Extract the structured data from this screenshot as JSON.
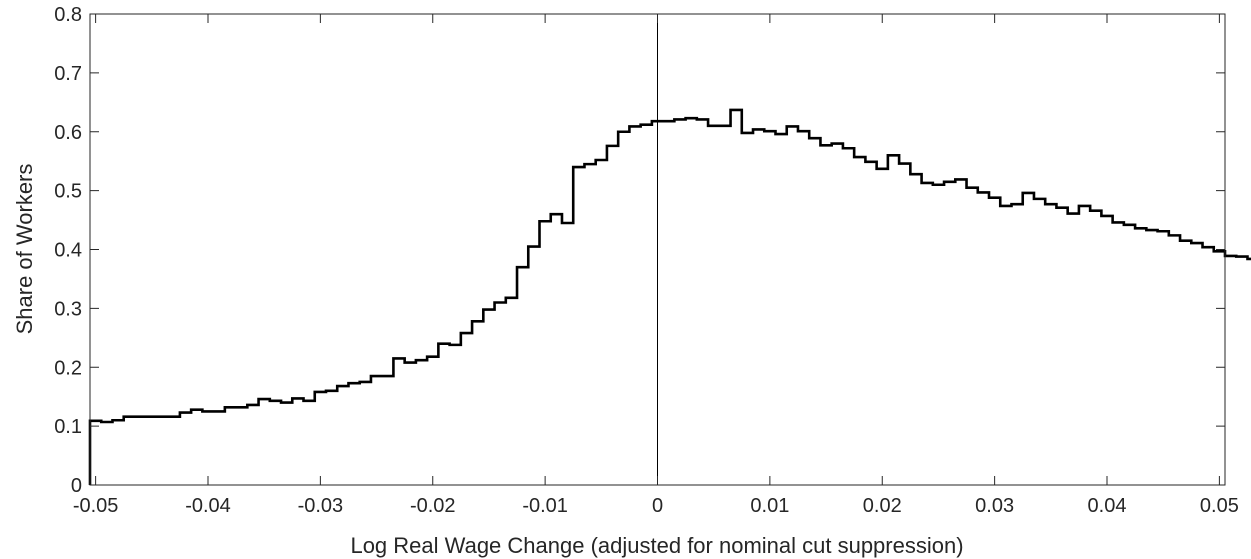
{
  "chart_data": {
    "type": "line",
    "title": "",
    "xlabel": "Log Real Wage Change (adjusted for nominal cut suppression)",
    "ylabel": "Share of Workers",
    "xlim": [
      -0.0505,
      0.0505
    ],
    "ylim": [
      0,
      0.8
    ],
    "xticks": [
      -0.05,
      -0.04,
      -0.03,
      -0.02,
      -0.01,
      0,
      0.01,
      0.02,
      0.03,
      0.04,
      0.05
    ],
    "xtick_labels": [
      "-0.05",
      "-0.04",
      "-0.03",
      "-0.02",
      "-0.01",
      "0",
      "0.01",
      "0.02",
      "0.03",
      "0.04",
      "0.05"
    ],
    "yticks": [
      0,
      0.1,
      0.2,
      0.3,
      0.4,
      0.5,
      0.6,
      0.7,
      0.8
    ],
    "ytick_labels": [
      "0",
      "0.1",
      "0.2",
      "0.3",
      "0.4",
      "0.5",
      "0.6",
      "0.7",
      "0.8"
    ],
    "grid": false,
    "vertical_reference_line": 0,
    "bin_width": 0.001,
    "series": [
      {
        "style": "stairs",
        "color": "#000000",
        "bin_start": -0.0505,
        "values": [
          0.109,
          0.107,
          0.11,
          0.116,
          0.116,
          0.116,
          0.116,
          0.116,
          0.123,
          0.128,
          0.125,
          0.125,
          0.132,
          0.132,
          0.136,
          0.146,
          0.143,
          0.14,
          0.147,
          0.143,
          0.158,
          0.16,
          0.168,
          0.173,
          0.175,
          0.185,
          0.185,
          0.215,
          0.208,
          0.212,
          0.218,
          0.24,
          0.238,
          0.258,
          0.278,
          0.298,
          0.31,
          0.318,
          0.37,
          0.405,
          0.448,
          0.46,
          0.445,
          0.54,
          0.545,
          0.552,
          0.576,
          0.6,
          0.609,
          0.612,
          0.618,
          0.618,
          0.621,
          0.623,
          0.621,
          0.61,
          0.61,
          0.637,
          0.598,
          0.604,
          0.601,
          0.596,
          0.609,
          0.601,
          0.589,
          0.577,
          0.58,
          0.572,
          0.557,
          0.549,
          0.537,
          0.56,
          0.546,
          0.528,
          0.513,
          0.51,
          0.515,
          0.519,
          0.505,
          0.497,
          0.488,
          0.474,
          0.477,
          0.496,
          0.486,
          0.477,
          0.471,
          0.461,
          0.474,
          0.466,
          0.457,
          0.446,
          0.442,
          0.436,
          0.433,
          0.431,
          0.424,
          0.415,
          0.411,
          0.404,
          0.397,
          0.389,
          0.388,
          0.384
        ]
      }
    ]
  }
}
